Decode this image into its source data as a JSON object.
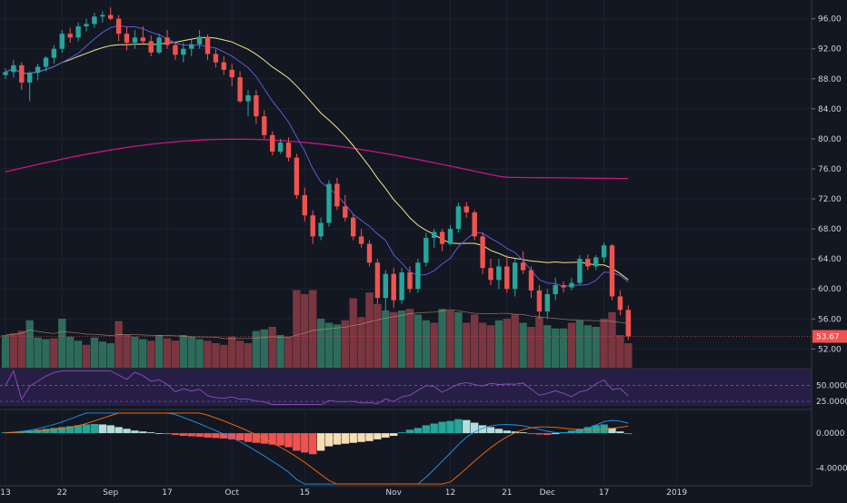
{
  "chart_data": {
    "type": "candlestick",
    "title": "",
    "price_axis": {
      "ticks": [
        "96.00",
        "92.00",
        "88.00",
        "84.00",
        "80.00",
        "76.00",
        "72.00",
        "68.00",
        "64.00",
        "60.00",
        "56.00",
        "52.00"
      ],
      "range": [
        49.5,
        98.5
      ],
      "last_price_label": "53.67",
      "last_price": 53.67
    },
    "rsi_axis": {
      "ticks": [
        "50.0000",
        "25.0000"
      ],
      "range": [
        18,
        75
      ]
    },
    "macd_axis": {
      "ticks": [
        "0.0000",
        "-4.0000"
      ],
      "range": [
        -6.0,
        2.5
      ]
    },
    "x_labels": [
      {
        "label": "13",
        "i": 0
      },
      {
        "label": "22",
        "i": 7
      },
      {
        "label": "Sep",
        "i": 13
      },
      {
        "label": "17",
        "i": 20
      },
      {
        "label": "Oct",
        "i": 28
      },
      {
        "label": "15",
        "i": 37
      },
      {
        "label": "Nov",
        "i": 48
      },
      {
        "label": "12",
        "i": 55
      },
      {
        "label": "21",
        "i": 62
      },
      {
        "label": "Dec",
        "i": 67
      },
      {
        "label": "17",
        "i": 74
      },
      {
        "label": "2019",
        "i": 83
      }
    ],
    "candles": [
      [
        88.5,
        89.4,
        88.0,
        88.9
      ],
      [
        88.9,
        90.5,
        88.2,
        89.8
      ],
      [
        89.8,
        90.2,
        86.5,
        87.5
      ],
      [
        87.5,
        89.0,
        85.0,
        88.8
      ],
      [
        88.8,
        90.0,
        87.8,
        89.6
      ],
      [
        89.6,
        91.0,
        89.0,
        90.8
      ],
      [
        90.8,
        92.5,
        90.0,
        92.0
      ],
      [
        92.0,
        94.5,
        91.5,
        94.0
      ],
      [
        94.0,
        94.8,
        92.8,
        93.5
      ],
      [
        93.5,
        95.5,
        93.0,
        95.0
      ],
      [
        95.0,
        96.0,
        94.3,
        95.3
      ],
      [
        95.3,
        96.8,
        94.8,
        96.3
      ],
      [
        96.3,
        97.0,
        95.5,
        96.5
      ],
      [
        96.5,
        97.5,
        95.8,
        96.0
      ],
      [
        96.0,
        96.5,
        93.0,
        94.0
      ],
      [
        94.0,
        95.0,
        91.8,
        92.8
      ],
      [
        92.8,
        94.5,
        92.0,
        93.5
      ],
      [
        93.5,
        95.0,
        92.5,
        93.0
      ],
      [
        93.0,
        93.8,
        91.0,
        91.5
      ],
      [
        91.5,
        94.0,
        91.3,
        93.5
      ],
      [
        93.5,
        94.5,
        92.0,
        92.5
      ],
      [
        92.5,
        93.0,
        90.5,
        91.2
      ],
      [
        91.2,
        92.8,
        90.2,
        92.0
      ],
      [
        92.0,
        93.2,
        91.0,
        92.6
      ],
      [
        92.6,
        94.5,
        92.0,
        93.6
      ],
      [
        93.6,
        93.9,
        90.5,
        91.3
      ],
      [
        91.3,
        92.0,
        89.5,
        90.2
      ],
      [
        90.2,
        91.0,
        88.5,
        89.2
      ],
      [
        89.2,
        90.0,
        87.0,
        88.2
      ],
      [
        88.2,
        89.0,
        84.8,
        85.0
      ],
      [
        85.0,
        86.5,
        83.0,
        85.8
      ],
      [
        85.8,
        86.5,
        82.0,
        83.0
      ],
      [
        83.0,
        83.8,
        80.0,
        80.5
      ],
      [
        80.5,
        81.0,
        77.8,
        78.3
      ],
      [
        78.3,
        80.0,
        78.0,
        79.5
      ],
      [
        79.5,
        80.2,
        77.0,
        77.5
      ],
      [
        77.5,
        78.0,
        72.0,
        72.5
      ],
      [
        72.5,
        73.5,
        69.0,
        69.8
      ],
      [
        69.8,
        70.5,
        66.0,
        67.0
      ],
      [
        67.0,
        69.5,
        66.5,
        68.8
      ],
      [
        68.8,
        74.5,
        68.3,
        74.0
      ],
      [
        74.0,
        74.8,
        70.5,
        71.0
      ],
      [
        71.0,
        72.5,
        69.0,
        69.5
      ],
      [
        69.5,
        70.0,
        66.5,
        67.0
      ],
      [
        67.0,
        68.0,
        65.5,
        66.0
      ],
      [
        66.0,
        66.5,
        63.0,
        63.5
      ],
      [
        63.5,
        64.0,
        58.0,
        58.8
      ],
      [
        58.8,
        62.5,
        57.0,
        62.0
      ],
      [
        62.0,
        62.8,
        57.5,
        58.5
      ],
      [
        58.5,
        62.8,
        58.0,
        62.2
      ],
      [
        62.2,
        63.0,
        59.5,
        60.0
      ],
      [
        60.0,
        64.0,
        59.5,
        63.5
      ],
      [
        63.5,
        67.5,
        63.0,
        66.8
      ],
      [
        66.8,
        68.0,
        65.5,
        67.6
      ],
      [
        67.6,
        68.0,
        65.0,
        66.0
      ],
      [
        66.0,
        68.5,
        65.8,
        68.0
      ],
      [
        68.0,
        71.5,
        67.5,
        71.0
      ],
      [
        71.0,
        71.6,
        69.5,
        70.2
      ],
      [
        70.2,
        70.5,
        66.5,
        67.0
      ],
      [
        67.0,
        67.5,
        62.0,
        62.8
      ],
      [
        62.8,
        64.0,
        60.5,
        61.2
      ],
      [
        61.2,
        64.0,
        60.0,
        63.0
      ],
      [
        63.0,
        64.5,
        59.5,
        60.0
      ],
      [
        60.0,
        64.0,
        59.0,
        63.5
      ],
      [
        63.5,
        65.0,
        62.0,
        62.5
      ],
      [
        62.5,
        63.0,
        58.8,
        59.8
      ],
      [
        59.8,
        60.5,
        56.0,
        57.0
      ],
      [
        57.0,
        60.0,
        56.0,
        59.3
      ],
      [
        59.3,
        61.5,
        58.5,
        60.5
      ],
      [
        60.5,
        61.0,
        59.5,
        60.2
      ],
      [
        60.2,
        61.5,
        59.8,
        60.8
      ],
      [
        60.8,
        64.5,
        60.5,
        64.0
      ],
      [
        64.0,
        64.6,
        62.5,
        63.0
      ],
      [
        63.0,
        64.5,
        62.5,
        64.2
      ],
      [
        64.2,
        66.2,
        63.5,
        65.8
      ],
      [
        65.8,
        66.0,
        58.5,
        59.0
      ],
      [
        59.0,
        59.8,
        56.5,
        57.2
      ],
      [
        57.2,
        57.8,
        53.2,
        53.67
      ]
    ],
    "volume": [
      [
        0.4,
        "up"
      ],
      [
        0.42,
        "down"
      ],
      [
        0.45,
        "down"
      ],
      [
        0.58,
        "up"
      ],
      [
        0.37,
        "up"
      ],
      [
        0.35,
        "up"
      ],
      [
        0.36,
        "down"
      ],
      [
        0.6,
        "up"
      ],
      [
        0.38,
        "up"
      ],
      [
        0.33,
        "up"
      ],
      [
        0.28,
        "down"
      ],
      [
        0.37,
        "up"
      ],
      [
        0.32,
        "up"
      ],
      [
        0.3,
        "up"
      ],
      [
        0.57,
        "down"
      ],
      [
        0.4,
        "down"
      ],
      [
        0.38,
        "up"
      ],
      [
        0.35,
        "up"
      ],
      [
        0.33,
        "down"
      ],
      [
        0.4,
        "up"
      ],
      [
        0.36,
        "down"
      ],
      [
        0.33,
        "down"
      ],
      [
        0.4,
        "up"
      ],
      [
        0.38,
        "up"
      ],
      [
        0.35,
        "up"
      ],
      [
        0.33,
        "down"
      ],
      [
        0.3,
        "down"
      ],
      [
        0.28,
        "down"
      ],
      [
        0.38,
        "down"
      ],
      [
        0.33,
        "down"
      ],
      [
        0.3,
        "down"
      ],
      [
        0.45,
        "up"
      ],
      [
        0.47,
        "up"
      ],
      [
        0.5,
        "down"
      ],
      [
        0.4,
        "up"
      ],
      [
        0.38,
        "down"
      ],
      [
        0.95,
        "down"
      ],
      [
        0.9,
        "down"
      ],
      [
        0.95,
        "down"
      ],
      [
        0.6,
        "up"
      ],
      [
        0.55,
        "up"
      ],
      [
        0.53,
        "up"
      ],
      [
        0.58,
        "down"
      ],
      [
        0.85,
        "down"
      ],
      [
        0.62,
        "down"
      ],
      [
        0.92,
        "down"
      ],
      [
        0.78,
        "down"
      ],
      [
        0.7,
        "up"
      ],
      [
        0.68,
        "down"
      ],
      [
        0.7,
        "up"
      ],
      [
        0.72,
        "down"
      ],
      [
        0.65,
        "up"
      ],
      [
        0.58,
        "up"
      ],
      [
        0.55,
        "down"
      ],
      [
        0.72,
        "up"
      ],
      [
        0.7,
        "down"
      ],
      [
        0.68,
        "up"
      ],
      [
        0.55,
        "down"
      ],
      [
        0.65,
        "down"
      ],
      [
        0.55,
        "down"
      ],
      [
        0.52,
        "down"
      ],
      [
        0.58,
        "up"
      ],
      [
        0.6,
        "down"
      ],
      [
        0.65,
        "down"
      ],
      [
        0.55,
        "up"
      ],
      [
        0.5,
        "down"
      ],
      [
        0.62,
        "down"
      ],
      [
        0.52,
        "up"
      ],
      [
        0.48,
        "up"
      ],
      [
        0.48,
        "up"
      ],
      [
        0.55,
        "down"
      ],
      [
        0.58,
        "up"
      ],
      [
        0.52,
        "up"
      ],
      [
        0.5,
        "up"
      ],
      [
        0.6,
        "down"
      ],
      [
        0.68,
        "down"
      ],
      [
        0.4,
        "down"
      ],
      [
        0.3,
        "down"
      ]
    ],
    "macd_hist": [
      0.1,
      0.15,
      0.2,
      0.3,
      0.4,
      0.5,
      0.6,
      0.7,
      0.8,
      0.9,
      1.0,
      1.05,
      1.0,
      0.9,
      0.7,
      0.5,
      0.3,
      0.2,
      0.1,
      0.0,
      -0.1,
      -0.2,
      -0.3,
      -0.35,
      -0.4,
      -0.5,
      -0.55,
      -0.6,
      -0.7,
      -0.8,
      -1.0,
      -1.1,
      -1.2,
      -1.3,
      -1.4,
      -1.6,
      -2.0,
      -2.2,
      -2.4,
      -2.0,
      -1.5,
      -1.3,
      -1.2,
      -1.1,
      -1.0,
      -0.9,
      -0.7,
      -0.5,
      -0.3,
      0.1,
      0.4,
      0.6,
      0.9,
      1.1,
      1.3,
      1.4,
      1.6,
      1.5,
      1.2,
      0.9,
      0.7,
      0.5,
      0.3,
      0.2,
      0.1,
      -0.1,
      -0.15,
      -0.2,
      -0.1,
      0.1,
      0.3,
      0.5,
      0.7,
      0.9,
      1.0,
      0.6,
      0.2,
      -0.1
    ],
    "colors": {
      "up": "#26a69a",
      "down": "#ef5350",
      "ma_fast": "#5b5bd6",
      "ma_mid": "#f0e68c",
      "ma_slow": "#c71585",
      "rsi_band": "#2a1f4a",
      "rsi_line": "#8c4fbf",
      "macd_line": "#2196f3",
      "signal_line": "#ff6d00",
      "hist_pos_strong": "#26a69a",
      "hist_pos_weak": "#b2dfdb",
      "hist_neg_strong": "#ef5350",
      "hist_neg_weak": "#f5deb3"
    }
  }
}
